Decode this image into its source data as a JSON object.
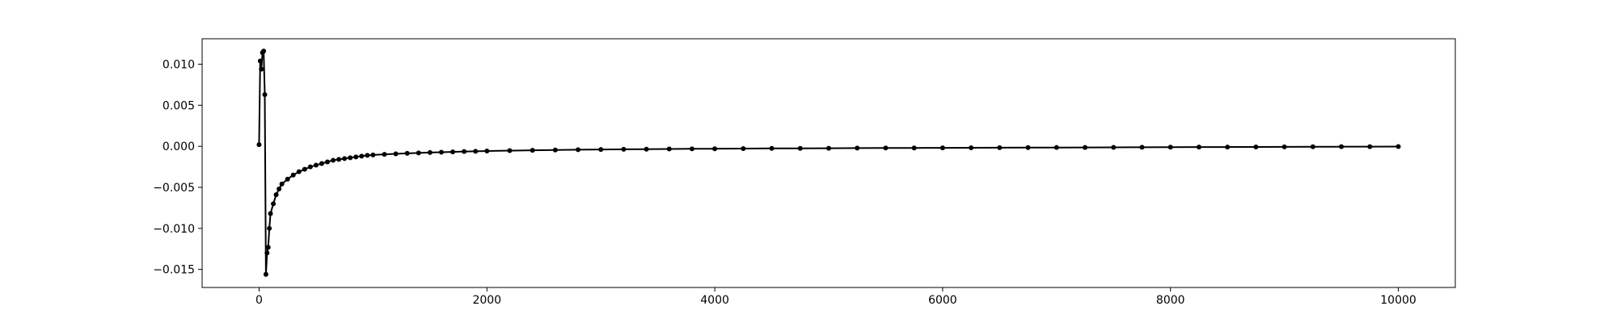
{
  "chart_data": {
    "type": "line",
    "title": "",
    "xlabel": "",
    "ylabel": "",
    "grid": false,
    "xlim": [
      -500,
      10500
    ],
    "ylim": [
      -0.0172,
      0.0131
    ],
    "x_ticks": [
      0,
      2000,
      4000,
      6000,
      8000,
      10000
    ],
    "x_tick_labels": [
      "0",
      "2000",
      "4000",
      "6000",
      "8000",
      "10000"
    ],
    "y_ticks": [
      0.01,
      0.005,
      0.0,
      -0.005,
      -0.01,
      -0.015
    ],
    "y_tick_labels": [
      "0.010",
      "0.005",
      "0.000",
      "−0.005",
      "−0.010",
      "−0.015"
    ],
    "series": [
      {
        "color": "#000000",
        "marker": "circle",
        "x": [
          0,
          10,
          20,
          30,
          40,
          50,
          60,
          70,
          80,
          90,
          100,
          125,
          150,
          175,
          200,
          250,
          300,
          350,
          400,
          450,
          500,
          550,
          600,
          650,
          700,
          750,
          800,
          850,
          900,
          950,
          1000,
          1100,
          1200,
          1300,
          1400,
          1500,
          1600,
          1700,
          1800,
          1900,
          2000,
          2200,
          2400,
          2600,
          2800,
          3000,
          3200,
          3400,
          3600,
          3800,
          4000,
          4250,
          4500,
          4750,
          5000,
          5250,
          5500,
          5750,
          6000,
          6250,
          6500,
          6750,
          7000,
          7250,
          7500,
          7750,
          8000,
          8250,
          8500,
          8750,
          9000,
          9250,
          9500,
          9750,
          10000
        ],
        "y": [
          0.0002,
          0.0104,
          0.0094,
          0.0114,
          0.0116,
          0.0063,
          -0.0156,
          -0.013,
          -0.0123,
          -0.01,
          -0.0082,
          -0.007,
          -0.0059,
          -0.0052,
          -0.0046,
          -0.004,
          -0.0035,
          -0.0031,
          -0.0028,
          -0.0025,
          -0.0023,
          -0.0021,
          -0.0019,
          -0.0017,
          -0.0016,
          -0.0015,
          -0.0014,
          -0.0013,
          -0.0012,
          -0.0011,
          -0.00105,
          -0.00098,
          -0.00092,
          -0.00086,
          -0.00081,
          -0.00076,
          -0.00072,
          -0.00068,
          -0.00064,
          -0.00061,
          -0.00058,
          -0.00053,
          -0.00049,
          -0.00045,
          -0.00042,
          -0.00039,
          -0.00037,
          -0.00035,
          -0.00033,
          -0.00031,
          -0.0003,
          -0.00028,
          -0.00026,
          -0.00025,
          -0.00024,
          -0.00022,
          -0.00021,
          -0.0002,
          -0.00019,
          -0.00018,
          -0.00017,
          -0.00016,
          -0.00015,
          -0.00014,
          -0.00013,
          -0.00012,
          -0.00011,
          -0.0001,
          -9e-05,
          -8e-05,
          -7e-05,
          -6e-05,
          -5e-05,
          -4e-05,
          -3e-05
        ]
      }
    ]
  }
}
